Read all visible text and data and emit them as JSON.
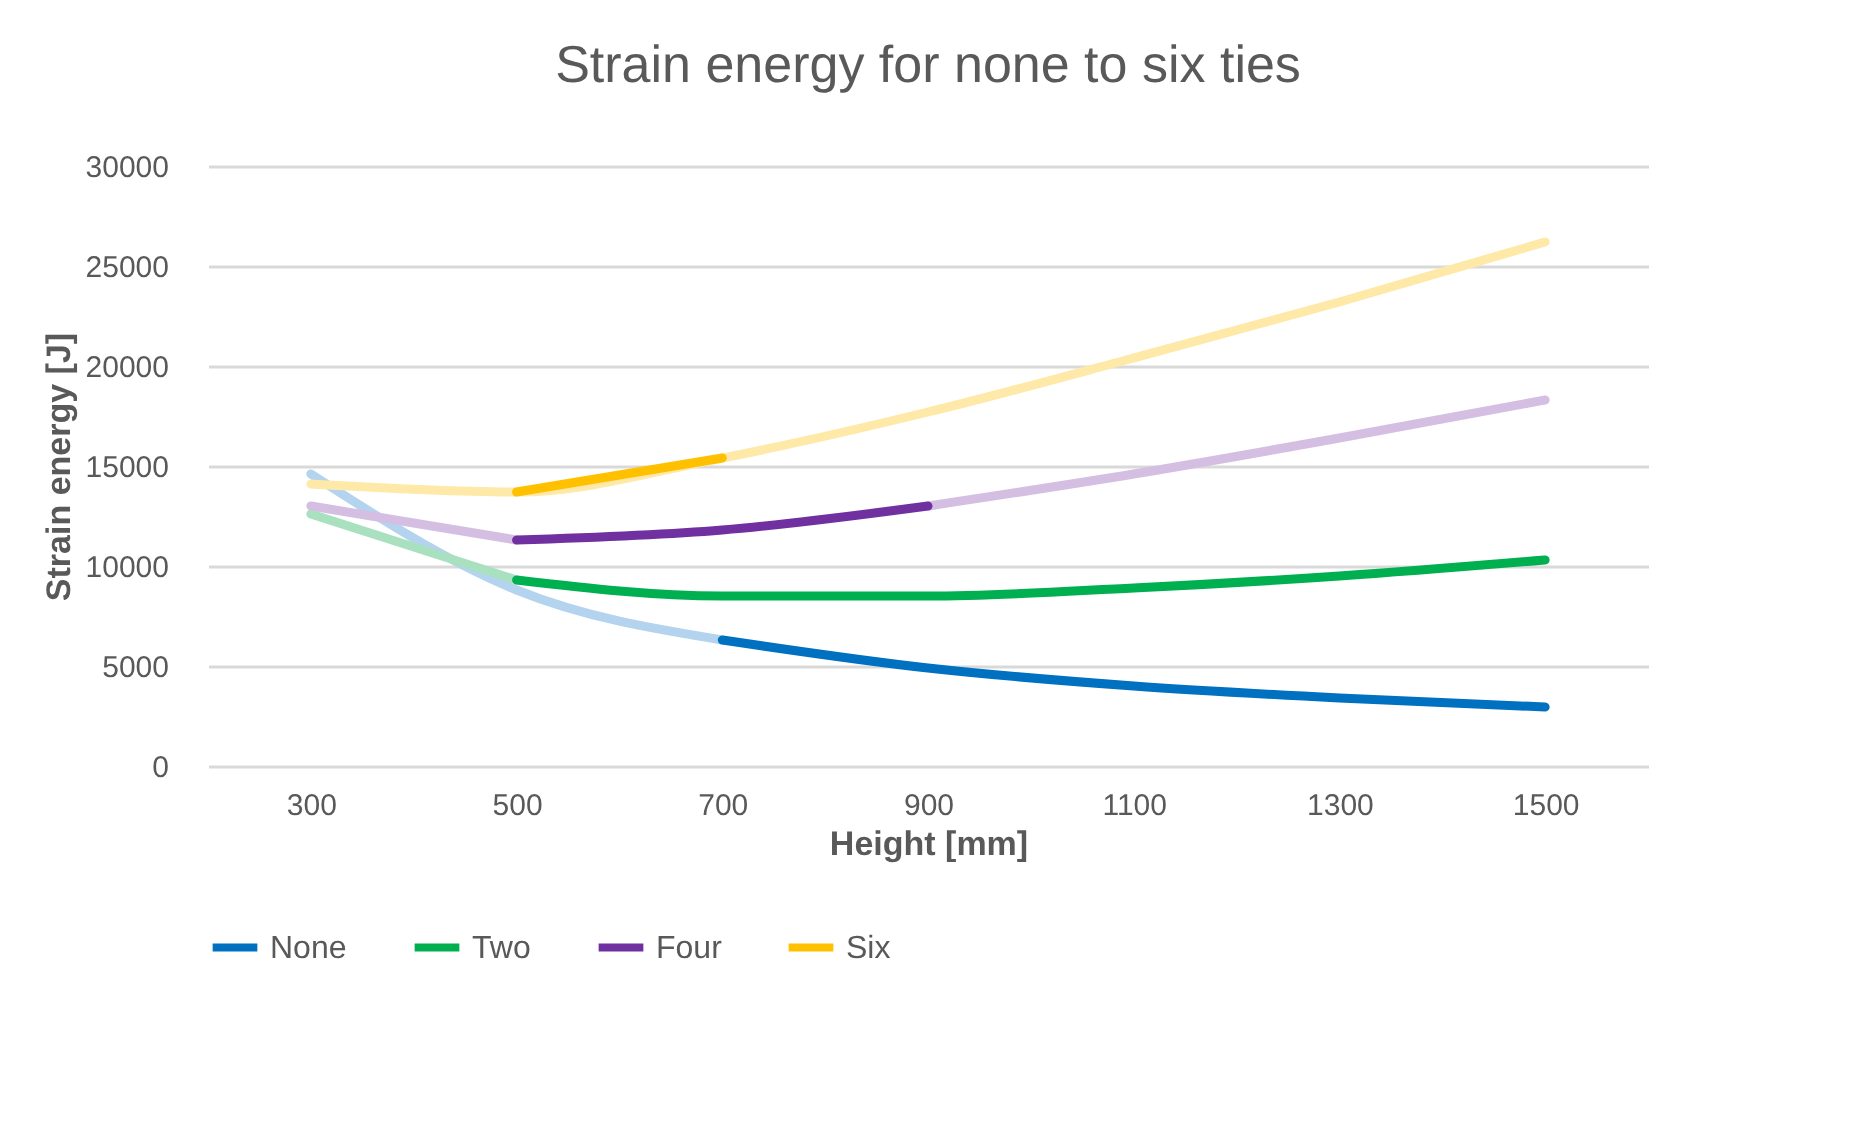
{
  "chart_data": {
    "type": "line",
    "title": "Strain energy for none to six ties",
    "xlabel": "Height [mm]",
    "ylabel": "Strain energy [J]",
    "categories": [
      "300",
      "500",
      "700",
      "900",
      "1100",
      "1300",
      "1500"
    ],
    "series": [
      {
        "color": "#b4d3ee",
        "values": [
          14600,
          8800,
          6300,
          null,
          null,
          null,
          null
        ]
      },
      {
        "color": "#a9e0bf",
        "values": [
          12600,
          9300,
          null,
          null,
          null,
          null,
          null
        ]
      },
      {
        "color": "#d4bfe3",
        "values": [
          13000,
          11300,
          null,
          13000,
          14600,
          16400,
          18300
        ]
      },
      {
        "color": "#ffe9a8",
        "values": [
          14100,
          13700,
          15400,
          17700,
          20400,
          23200,
          26200
        ]
      },
      {
        "name": "None",
        "color": "#0070c0",
        "values": [
          null,
          null,
          6300,
          4900,
          4000,
          3400,
          2950
        ]
      },
      {
        "name": "Two",
        "color": "#00b050",
        "values": [
          null,
          9300,
          8500,
          8500,
          8900,
          9500,
          10300
        ]
      },
      {
        "name": "Four",
        "color": "#7030a0",
        "values": [
          null,
          11300,
          11800,
          13000,
          null,
          null,
          null
        ]
      },
      {
        "name": "Six",
        "color": "#ffc000",
        "values": [
          null,
          13700,
          15400,
          null,
          null,
          null,
          null
        ]
      }
    ],
    "ylim": [
      0,
      30000
    ],
    "yticks": [
      0,
      5000,
      10000,
      15000,
      20000,
      25000,
      30000
    ],
    "grid": "y",
    "legend": "bottom"
  }
}
